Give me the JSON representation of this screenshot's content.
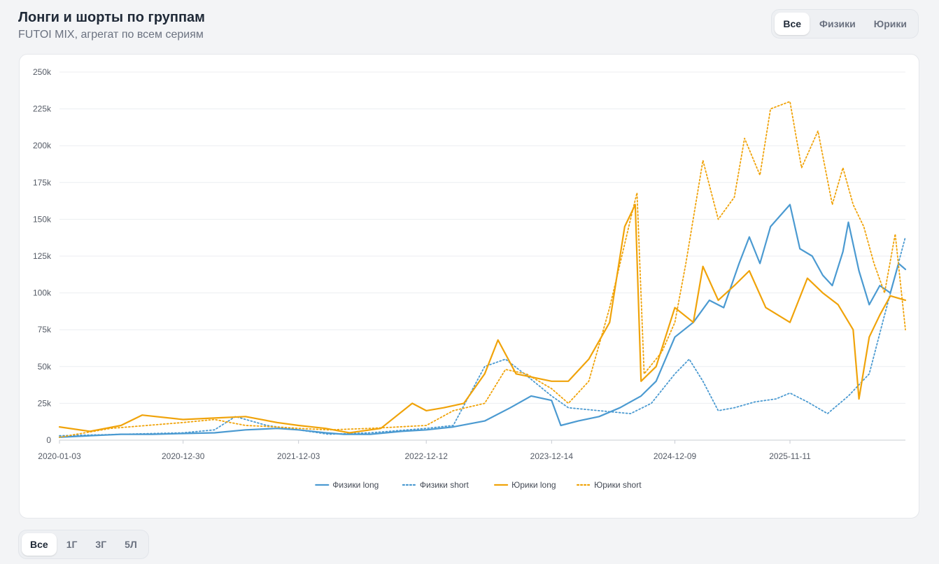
{
  "header": {
    "title": "Лонги и шорты по группам",
    "subtitle": "FUTOI MIX, агрегат по всем сериям"
  },
  "group_tabs": [
    {
      "label": "Все",
      "active": true
    },
    {
      "label": "Физики",
      "active": false
    },
    {
      "label": "Юрики",
      "active": false
    }
  ],
  "range_tabs": [
    {
      "label": "Все",
      "active": true
    },
    {
      "label": "1Г",
      "active": false
    },
    {
      "label": "3Г",
      "active": false
    },
    {
      "label": "5Л",
      "active": false
    }
  ],
  "chart_data": {
    "type": "line",
    "title": "",
    "xlabel": "",
    "ylabel": "",
    "ylim": [
      0,
      250000
    ],
    "yticks": [
      0,
      25000,
      50000,
      75000,
      100000,
      125000,
      150000,
      175000,
      200000,
      225000,
      250000
    ],
    "ytick_labels": [
      "0",
      "25k",
      "50k",
      "75k",
      "100k",
      "125k",
      "150k",
      "175k",
      "200k",
      "225k",
      "250k"
    ],
    "xlim": [
      "2020-01-03",
      "2026-10-15"
    ],
    "xtick_labels": [
      "2020-01-03",
      "2020-12-30",
      "2021-12-03",
      "2022-12-12",
      "2023-12-14",
      "2024-12-09",
      "2025-11-11"
    ],
    "grid": true,
    "legend": "bottom",
    "series": [
      {
        "name": "Физики long",
        "color": "#4b9ad1",
        "dash": false,
        "points": [
          [
            "2020-01-03",
            2000
          ],
          [
            "2020-04-01",
            3000
          ],
          [
            "2020-07-01",
            4000
          ],
          [
            "2020-10-01",
            4000
          ],
          [
            "2020-12-30",
            4500
          ],
          [
            "2021-04-01",
            5000
          ],
          [
            "2021-07-01",
            7000
          ],
          [
            "2021-10-01",
            8000
          ],
          [
            "2021-12-03",
            7000
          ],
          [
            "2022-02-20",
            5000
          ],
          [
            "2022-04-15",
            4000
          ],
          [
            "2022-07-01",
            4000
          ],
          [
            "2022-10-01",
            6000
          ],
          [
            "2022-12-12",
            7000
          ],
          [
            "2023-03-01",
            9000
          ],
          [
            "2023-06-01",
            13000
          ],
          [
            "2023-08-15",
            22000
          ],
          [
            "2023-10-15",
            30000
          ],
          [
            "2023-12-14",
            27000
          ],
          [
            "2024-01-10",
            10000
          ],
          [
            "2024-03-01",
            13000
          ],
          [
            "2024-05-01",
            16000
          ],
          [
            "2024-07-01",
            22000
          ],
          [
            "2024-09-01",
            30000
          ],
          [
            "2024-10-15",
            40000
          ],
          [
            "2024-12-09",
            70000
          ],
          [
            "2025-02-01",
            80000
          ],
          [
            "2025-03-20",
            95000
          ],
          [
            "2025-05-01",
            90000
          ],
          [
            "2025-06-15",
            120000
          ],
          [
            "2025-07-15",
            138000
          ],
          [
            "2025-08-15",
            120000
          ],
          [
            "2025-09-15",
            145000
          ],
          [
            "2025-11-11",
            160000
          ],
          [
            "2025-12-10",
            130000
          ],
          [
            "2026-01-15",
            125000
          ],
          [
            "2026-02-15",
            112000
          ],
          [
            "2026-03-15",
            105000
          ],
          [
            "2026-04-15",
            128000
          ],
          [
            "2026-05-01",
            148000
          ],
          [
            "2026-06-01",
            115000
          ],
          [
            "2026-07-01",
            92000
          ],
          [
            "2026-08-01",
            105000
          ],
          [
            "2026-09-01",
            100000
          ],
          [
            "2026-09-25",
            120000
          ],
          [
            "2026-10-15",
            116000
          ]
        ]
      },
      {
        "name": "Физики short",
        "color": "#4b9ad1",
        "dash": true,
        "points": [
          [
            "2020-01-03",
            3000
          ],
          [
            "2020-07-01",
            4000
          ],
          [
            "2020-12-30",
            5000
          ],
          [
            "2021-04-01",
            7000
          ],
          [
            "2021-06-01",
            16000
          ],
          [
            "2021-09-01",
            10000
          ],
          [
            "2021-12-03",
            7000
          ],
          [
            "2022-03-01",
            4000
          ],
          [
            "2022-07-01",
            5000
          ],
          [
            "2022-12-12",
            8000
          ],
          [
            "2023-03-01",
            10000
          ],
          [
            "2023-06-01",
            50000
          ],
          [
            "2023-08-01",
            55000
          ],
          [
            "2023-10-01",
            44000
          ],
          [
            "2023-12-14",
            30000
          ],
          [
            "2024-02-01",
            22000
          ],
          [
            "2024-05-01",
            20000
          ],
          [
            "2024-08-01",
            18000
          ],
          [
            "2024-10-01",
            25000
          ],
          [
            "2024-12-09",
            45000
          ],
          [
            "2025-01-20",
            55000
          ],
          [
            "2025-03-01",
            40000
          ],
          [
            "2025-04-15",
            20000
          ],
          [
            "2025-06-01",
            22000
          ],
          [
            "2025-08-01",
            26000
          ],
          [
            "2025-10-01",
            28000
          ],
          [
            "2025-11-11",
            32000
          ],
          [
            "2026-01-01",
            26000
          ],
          [
            "2026-03-01",
            18000
          ],
          [
            "2026-05-01",
            30000
          ],
          [
            "2026-07-01",
            45000
          ],
          [
            "2026-08-15",
            85000
          ],
          [
            "2026-10-15",
            138000
          ]
        ]
      },
      {
        "name": "Юрики long",
        "color": "#f0a30a",
        "dash": false,
        "points": [
          [
            "2020-01-03",
            9000
          ],
          [
            "2020-04-01",
            6000
          ],
          [
            "2020-07-01",
            10000
          ],
          [
            "2020-09-01",
            17000
          ],
          [
            "2020-12-30",
            14000
          ],
          [
            "2021-04-01",
            15000
          ],
          [
            "2021-07-01",
            16000
          ],
          [
            "2021-10-01",
            12000
          ],
          [
            "2021-12-03",
            10000
          ],
          [
            "2022-02-20",
            8000
          ],
          [
            "2022-05-01",
            5000
          ],
          [
            "2022-08-01",
            8000
          ],
          [
            "2022-11-01",
            25000
          ],
          [
            "2022-12-12",
            20000
          ],
          [
            "2023-02-01",
            22000
          ],
          [
            "2023-04-01",
            25000
          ],
          [
            "2023-06-01",
            45000
          ],
          [
            "2023-07-10",
            68000
          ],
          [
            "2023-09-01",
            45000
          ],
          [
            "2023-12-14",
            40000
          ],
          [
            "2024-02-01",
            40000
          ],
          [
            "2024-04-01",
            55000
          ],
          [
            "2024-06-01",
            80000
          ],
          [
            "2024-07-15",
            145000
          ],
          [
            "2024-08-15",
            160000
          ],
          [
            "2024-09-01",
            40000
          ],
          [
            "2024-10-15",
            50000
          ],
          [
            "2024-12-09",
            90000
          ],
          [
            "2025-02-01",
            80000
          ],
          [
            "2025-03-01",
            118000
          ],
          [
            "2025-04-15",
            95000
          ],
          [
            "2025-06-01",
            105000
          ],
          [
            "2025-07-15",
            115000
          ],
          [
            "2025-09-01",
            90000
          ],
          [
            "2025-11-11",
            80000
          ],
          [
            "2026-01-01",
            110000
          ],
          [
            "2026-02-15",
            100000
          ],
          [
            "2026-04-01",
            92000
          ],
          [
            "2026-05-15",
            75000
          ],
          [
            "2026-06-01",
            28000
          ],
          [
            "2026-07-01",
            70000
          ],
          [
            "2026-08-01",
            85000
          ],
          [
            "2026-09-01",
            98000
          ],
          [
            "2026-10-15",
            95000
          ]
        ]
      },
      {
        "name": "Юрики short",
        "color": "#f0a30a",
        "dash": true,
        "points": [
          [
            "2020-01-03",
            2000
          ],
          [
            "2020-06-01",
            8000
          ],
          [
            "2020-12-30",
            12000
          ],
          [
            "2021-04-01",
            14000
          ],
          [
            "2021-07-01",
            10000
          ],
          [
            "2021-10-01",
            9000
          ],
          [
            "2021-12-03",
            8000
          ],
          [
            "2022-03-01",
            7000
          ],
          [
            "2022-07-01",
            8000
          ],
          [
            "2022-12-12",
            10000
          ],
          [
            "2023-03-01",
            20000
          ],
          [
            "2023-06-01",
            25000
          ],
          [
            "2023-08-01",
            48000
          ],
          [
            "2023-10-01",
            45000
          ],
          [
            "2023-12-14",
            35000
          ],
          [
            "2024-02-01",
            25000
          ],
          [
            "2024-04-01",
            40000
          ],
          [
            "2024-06-01",
            90000
          ],
          [
            "2024-08-01",
            150000
          ],
          [
            "2024-08-20",
            168000
          ],
          [
            "2024-09-10",
            45000
          ],
          [
            "2024-11-01",
            60000
          ],
          [
            "2024-12-09",
            80000
          ],
          [
            "2025-01-10",
            120000
          ],
          [
            "2025-03-01",
            190000
          ],
          [
            "2025-04-15",
            150000
          ],
          [
            "2025-06-01",
            165000
          ],
          [
            "2025-07-01",
            205000
          ],
          [
            "2025-08-15",
            180000
          ],
          [
            "2025-09-15",
            225000
          ],
          [
            "2025-11-11",
            230000
          ],
          [
            "2025-12-15",
            185000
          ],
          [
            "2026-02-01",
            210000
          ],
          [
            "2026-03-15",
            160000
          ],
          [
            "2026-04-15",
            185000
          ],
          [
            "2026-05-15",
            160000
          ],
          [
            "2026-06-15",
            145000
          ],
          [
            "2026-07-15",
            120000
          ],
          [
            "2026-08-15",
            100000
          ],
          [
            "2026-09-15",
            140000
          ],
          [
            "2026-10-15",
            75000
          ]
        ]
      }
    ]
  }
}
